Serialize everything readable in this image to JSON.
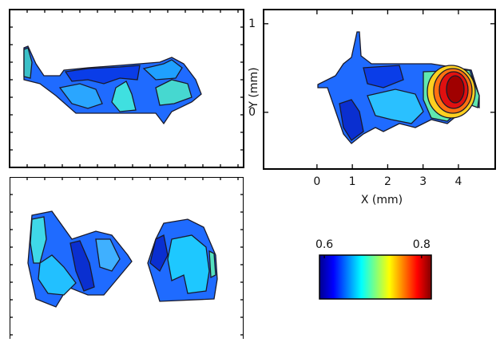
{
  "chart_data": [
    {
      "type": "contour",
      "xlabel": "X (mm)",
      "ylabel": "Y (mm)",
      "xlim": [
        -1.51,
        5.04
      ],
      "ylim": [
        -0.64,
        1.16
      ],
      "xticks": [
        0,
        1,
        2,
        3,
        4
      ],
      "yticks": [
        0,
        1
      ]
    },
    {
      "type": "colorbar",
      "clim": [
        0.59,
        0.82
      ],
      "cticks": [
        0.6,
        0.8
      ],
      "colormap": "jet"
    }
  ]
}
